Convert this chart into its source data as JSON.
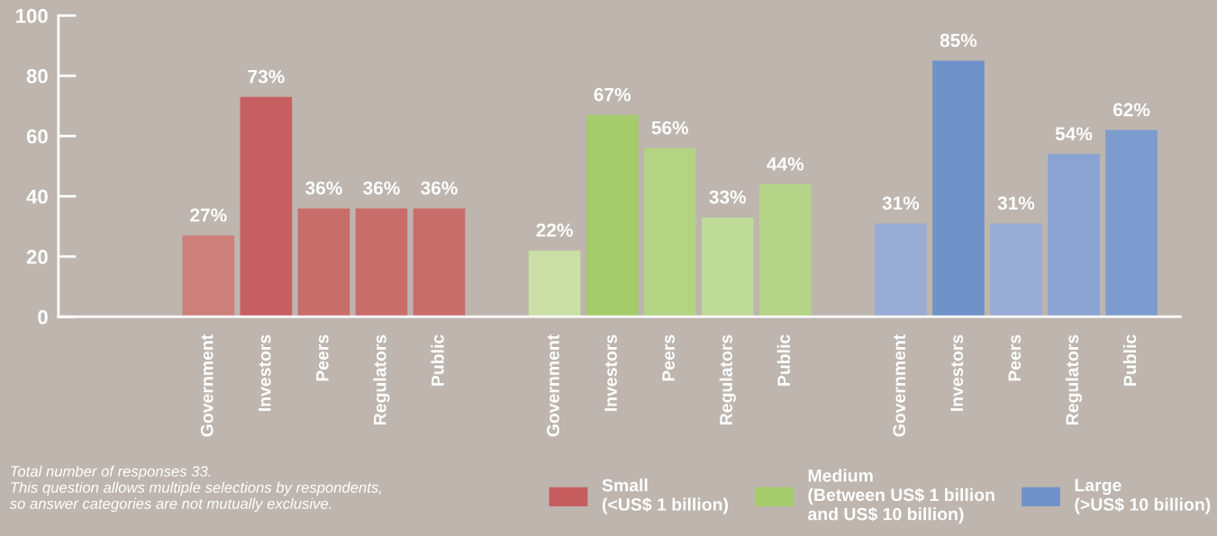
{
  "chart_data": {
    "type": "bar",
    "categories": [
      null,
      null,
      "Government",
      "Investors",
      "Peers",
      "Regulators",
      "Public",
      null,
      "Government",
      "Investors",
      "Peers",
      "Regulators",
      "Public",
      null,
      "Government",
      "Investors",
      "Peers",
      "Regulators",
      "Public"
    ],
    "series": [
      {
        "name": "Small\n(<US$ 1 billion)",
        "color": "#c65e60",
        "colors": [
          null,
          null,
          "#cf7f79",
          "#c65f62",
          "#c96d6b",
          "#c96d6b",
          "#c96d6b",
          null,
          null,
          null,
          null,
          null,
          null,
          null,
          null,
          null,
          null,
          null,
          null
        ],
        "values": [
          null,
          null,
          27,
          73,
          36,
          36,
          36,
          null,
          null,
          null,
          null,
          null,
          null,
          null,
          null,
          null,
          null,
          null,
          null
        ],
        "value_labels": [
          null,
          null,
          "27%",
          "73%",
          "36%",
          "36%",
          "36%",
          null,
          null,
          null,
          null,
          null,
          null,
          null,
          null,
          null,
          null,
          null,
          null
        ]
      },
      {
        "name": "Medium\n(Between US$ 1 billion\nand US$ 10 billion)",
        "color": "#a6cb6b",
        "colors": [
          null,
          null,
          null,
          null,
          null,
          null,
          null,
          null,
          "#cadea6",
          "#a6cb6b",
          "#b2d483",
          "#bedb97",
          "#b5d488",
          null,
          null,
          null,
          null,
          null,
          null
        ],
        "values": [
          null,
          null,
          null,
          null,
          null,
          null,
          null,
          null,
          22,
          67,
          56,
          33,
          44,
          null,
          null,
          null,
          null,
          null,
          null
        ],
        "value_labels": [
          null,
          null,
          null,
          null,
          null,
          null,
          null,
          null,
          "22%",
          "67%",
          "56%",
          "33%",
          "44%",
          null,
          null,
          null,
          null,
          null,
          null
        ]
      },
      {
        "name": "Large\n(>US$ 10 billion)",
        "color": "#6f92c9",
        "colors": [
          null,
          null,
          null,
          null,
          null,
          null,
          null,
          null,
          null,
          null,
          null,
          null,
          null,
          null,
          "#98acd6",
          "#6f92c9",
          "#98acd6",
          "#8aa3d2",
          "#7e9bd0"
        ],
        "values": [
          null,
          null,
          null,
          null,
          null,
          null,
          null,
          null,
          null,
          null,
          null,
          null,
          null,
          null,
          31,
          85,
          31,
          54,
          62
        ],
        "value_labels": [
          null,
          null,
          null,
          null,
          null,
          null,
          null,
          null,
          null,
          null,
          null,
          null,
          null,
          null,
          "31%",
          "85%",
          "31%",
          "54%",
          "62%"
        ]
      }
    ],
    "ylim": [
      0,
      100
    ],
    "yticks": [
      0,
      20,
      40,
      60,
      80,
      100
    ],
    "grid": false,
    "legend": "bottom right",
    "annotations": [
      "Total number of responses 33.\nThis question allows multiple selections by respondents,\nso answer categories are not mutually exclusive."
    ]
  }
}
